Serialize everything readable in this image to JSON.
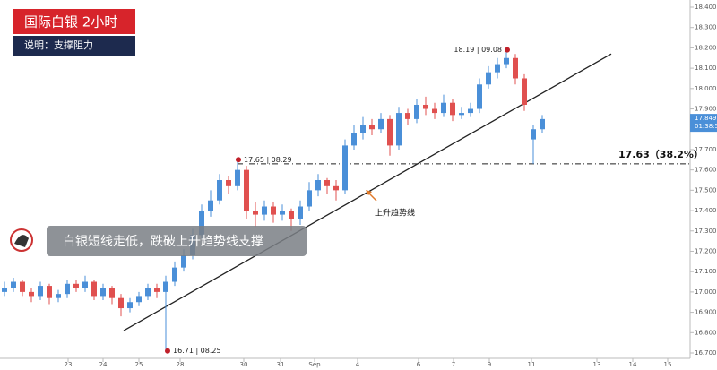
{
  "chart_data": {
    "type": "candlestick",
    "title": "国际白银  2小时",
    "subtitle": "说明：支撑阻力",
    "banner": "白银短线走低，跌破上升趋势线支撑",
    "up_color": "#4a8fd8",
    "down_color": "#e0504f",
    "x": [
      5,
      15,
      25,
      35,
      45,
      55,
      65,
      75,
      85,
      95,
      105,
      115,
      125,
      135,
      145,
      155,
      165,
      175,
      185,
      195,
      205,
      215,
      225,
      235,
      245,
      255,
      265,
      275,
      285,
      295,
      305,
      315,
      325,
      335,
      345,
      355,
      365,
      375,
      385,
      395,
      405,
      415,
      425,
      435,
      445,
      455,
      465,
      475,
      485,
      495,
      505,
      515,
      525,
      535,
      545,
      555,
      565,
      575,
      585,
      595,
      605
    ],
    "open": [
      17.0,
      17.02,
      17.05,
      17.0,
      16.98,
      17.03,
      16.97,
      16.99,
      17.04,
      17.02,
      17.05,
      16.98,
      17.02,
      16.97,
      16.92,
      16.95,
      16.98,
      17.02,
      17.0,
      17.05,
      17.12,
      17.18,
      17.28,
      17.4,
      17.45,
      17.55,
      17.52,
      17.6,
      17.4,
      17.38,
      17.42,
      17.38,
      17.4,
      17.36,
      17.42,
      17.5,
      17.55,
      17.52,
      17.5,
      17.72,
      17.78,
      17.82,
      17.8,
      17.85,
      17.72,
      17.88,
      17.85,
      17.92,
      17.9,
      17.88,
      17.93,
      17.87,
      17.88,
      17.9,
      18.02,
      18.08,
      18.12,
      18.15,
      18.05,
      17.75,
      17.8
    ],
    "high": [
      17.05,
      17.07,
      17.06,
      17.02,
      17.05,
      17.04,
      17.01,
      17.06,
      17.06,
      17.08,
      17.06,
      17.04,
      17.03,
      16.99,
      16.97,
      17.0,
      17.04,
      17.04,
      17.08,
      17.15,
      17.21,
      17.31,
      17.43,
      17.5,
      17.58,
      17.57,
      17.65,
      17.62,
      17.44,
      17.45,
      17.44,
      17.43,
      17.41,
      17.45,
      17.54,
      17.58,
      17.56,
      17.55,
      17.75,
      17.82,
      17.86,
      17.85,
      17.88,
      17.87,
      17.91,
      17.9,
      17.95,
      17.96,
      17.93,
      17.97,
      17.95,
      17.91,
      17.93,
      18.05,
      18.11,
      18.15,
      18.19,
      18.17,
      18.07,
      17.82,
      17.87
    ],
    "low": [
      16.98,
      17.0,
      16.98,
      16.95,
      16.96,
      16.94,
      16.95,
      16.97,
      17.0,
      17.0,
      16.96,
      16.96,
      16.94,
      16.88,
      16.9,
      16.93,
      16.96,
      16.97,
      16.71,
      17.03,
      17.1,
      17.16,
      17.26,
      17.37,
      17.43,
      17.48,
      17.5,
      17.36,
      17.32,
      17.35,
      17.34,
      17.35,
      17.3,
      17.33,
      17.4,
      17.47,
      17.48,
      17.45,
      17.48,
      17.7,
      17.75,
      17.77,
      17.78,
      17.67,
      17.7,
      17.82,
      17.83,
      17.87,
      17.85,
      17.86,
      17.84,
      17.85,
      17.86,
      17.88,
      18.0,
      18.05,
      18.1,
      18.02,
      17.89,
      17.63,
      17.78
    ],
    "close": [
      17.02,
      17.05,
      17.0,
      16.98,
      17.03,
      16.97,
      16.99,
      17.04,
      17.02,
      17.05,
      16.98,
      17.02,
      16.97,
      16.92,
      16.95,
      16.98,
      17.02,
      17.0,
      17.05,
      17.12,
      17.18,
      17.28,
      17.4,
      17.45,
      17.55,
      17.52,
      17.6,
      17.4,
      17.38,
      17.42,
      17.38,
      17.4,
      17.36,
      17.42,
      17.5,
      17.55,
      17.52,
      17.5,
      17.72,
      17.78,
      17.82,
      17.8,
      17.85,
      17.72,
      17.88,
      17.85,
      17.92,
      17.9,
      17.88,
      17.93,
      17.87,
      17.88,
      17.9,
      18.02,
      18.08,
      18.12,
      18.15,
      18.05,
      17.92,
      17.8,
      17.85
    ],
    "xlim": [
      0,
      770
    ],
    "xticks": [
      {
        "value": 76,
        "label": "23"
      },
      {
        "value": 115,
        "label": "24"
      },
      {
        "value": 155,
        "label": "25"
      },
      {
        "value": 201,
        "label": "28"
      },
      {
        "value": 272,
        "label": "30"
      },
      {
        "value": 313,
        "label": "31"
      },
      {
        "value": 351,
        "label": "Sep"
      },
      {
        "value": 399,
        "label": "4"
      },
      {
        "value": 467,
        "label": "6"
      },
      {
        "value": 506,
        "label": "7"
      },
      {
        "value": 546,
        "label": "9"
      },
      {
        "value": 593,
        "label": "11"
      },
      {
        "value": 666,
        "label": "13"
      },
      {
        "value": 706,
        "label": "14"
      },
      {
        "value": 745,
        "label": "15"
      }
    ],
    "ylim": [
      16.7,
      18.4
    ],
    "yticks": [
      {
        "value": 18.4,
        "label": "18.400"
      },
      {
        "value": 18.3,
        "label": "18.300"
      },
      {
        "value": 18.2,
        "label": "18.200"
      },
      {
        "value": 18.1,
        "label": "18.100"
      },
      {
        "value": 18.0,
        "label": "18.000"
      },
      {
        "value": 17.9,
        "label": "17.900"
      },
      {
        "value": 17.8,
        "label": "17.800"
      },
      {
        "value": 17.7,
        "label": "17.700"
      },
      {
        "value": 17.6,
        "label": "17.600"
      },
      {
        "value": 17.5,
        "label": "17.500"
      },
      {
        "value": 17.4,
        "label": "17.400"
      },
      {
        "value": 17.3,
        "label": "17.300"
      },
      {
        "value": 17.2,
        "label": "17.200"
      },
      {
        "value": 17.1,
        "label": "17.100"
      },
      {
        "value": 17.0,
        "label": "17.000"
      },
      {
        "value": 16.9,
        "label": "16.900"
      },
      {
        "value": 16.8,
        "label": "16.800"
      },
      {
        "value": 16.7,
        "label": "16.700"
      }
    ],
    "current_price": 17.849,
    "countdown": "01:38:5",
    "level": {
      "value": 17.63,
      "label": "17.63（38.2%）"
    },
    "trendline": {
      "label": "上升趋势线",
      "x": [
        138,
        682
      ],
      "y": [
        16.81,
        18.17
      ]
    },
    "annotations": [
      {
        "text": "16.71 | 08.25",
        "value": 16.71,
        "x": 187
      },
      {
        "text": "17.65 | 08.29",
        "value": 17.65,
        "x": 266
      },
      {
        "text": "18.19 | 09.08",
        "value": 18.19,
        "x": 566
      }
    ]
  }
}
